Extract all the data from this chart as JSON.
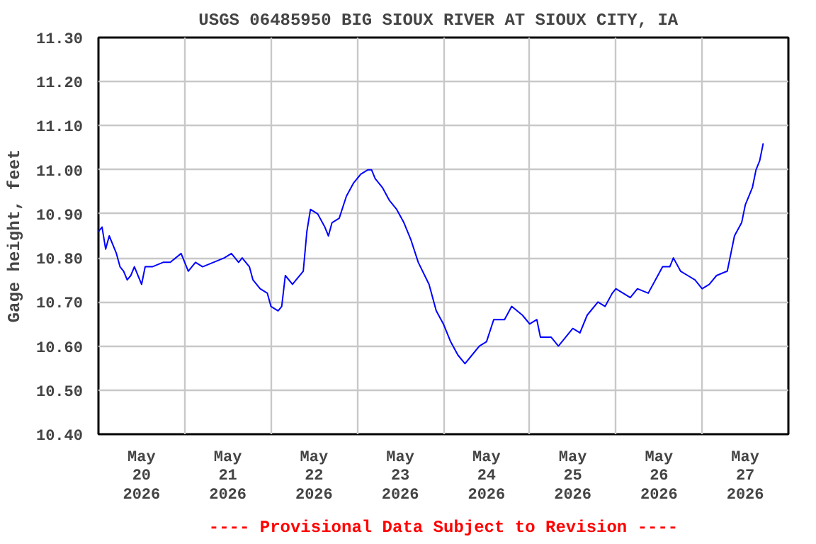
{
  "chart_data": {
    "type": "line",
    "title": "USGS 06485950 BIG SIOUX RIVER AT SIOUX CITY,  IA",
    "ylabel": "Gage height, feet",
    "annotations": [
      "---- Provisional Data Subject to Revision ----"
    ],
    "x": [
      "2026-05-20T00:00",
      "2026-05-20T01:00",
      "2026-05-20T02:00",
      "2026-05-20T03:00",
      "2026-05-20T04:00",
      "2026-05-20T05:00",
      "2026-05-20T06:00",
      "2026-05-20T07:00",
      "2026-05-20T08:00",
      "2026-05-20T09:00",
      "2026-05-20T10:00",
      "2026-05-20T12:00",
      "2026-05-20T13:00",
      "2026-05-20T15:00",
      "2026-05-20T18:00",
      "2026-05-20T20:00",
      "2026-05-20T23:00",
      "2026-05-21T01:00",
      "2026-05-21T03:00",
      "2026-05-21T05:00",
      "2026-05-21T08:00",
      "2026-05-21T11:00",
      "2026-05-21T13:00",
      "2026-05-21T15:00",
      "2026-05-21T16:00",
      "2026-05-21T18:00",
      "2026-05-21T19:00",
      "2026-05-21T21:00",
      "2026-05-21T23:00",
      "2026-05-22T00:00",
      "2026-05-22T02:00",
      "2026-05-22T03:00",
      "2026-05-22T04:00",
      "2026-05-22T06:00",
      "2026-05-22T07:00",
      "2026-05-22T09:00",
      "2026-05-22T10:00",
      "2026-05-22T11:00",
      "2026-05-22T13:00",
      "2026-05-22T15:00",
      "2026-05-22T16:00",
      "2026-05-22T17:00",
      "2026-05-22T19:00",
      "2026-05-22T21:00",
      "2026-05-22T23:00",
      "2026-05-23T01:00",
      "2026-05-23T03:00",
      "2026-05-23T04:00",
      "2026-05-23T05:00",
      "2026-05-23T07:00",
      "2026-05-23T09:00",
      "2026-05-23T11:00",
      "2026-05-23T13:00",
      "2026-05-23T15:00",
      "2026-05-23T17:00",
      "2026-05-23T20:00",
      "2026-05-23T22:00",
      "2026-05-24T00:00",
      "2026-05-24T02:00",
      "2026-05-24T04:00",
      "2026-05-24T06:00",
      "2026-05-24T08:00",
      "2026-05-24T10:00",
      "2026-05-24T12:00",
      "2026-05-24T14:00",
      "2026-05-24T17:00",
      "2026-05-24T19:00",
      "2026-05-24T22:00",
      "2026-05-25T00:00",
      "2026-05-25T02:00",
      "2026-05-25T03:00",
      "2026-05-25T06:00",
      "2026-05-25T08:00",
      "2026-05-25T10:00",
      "2026-05-25T12:00",
      "2026-05-25T14:00",
      "2026-05-25T16:00",
      "2026-05-25T19:00",
      "2026-05-25T21:00",
      "2026-05-25T23:00",
      "2026-05-26T00:00",
      "2026-05-26T02:00",
      "2026-05-26T04:00",
      "2026-05-26T06:00",
      "2026-05-26T09:00",
      "2026-05-26T11:00",
      "2026-05-26T13:00",
      "2026-05-26T15:00",
      "2026-05-26T16:00",
      "2026-05-26T18:00",
      "2026-05-26T20:00",
      "2026-05-26T22:00",
      "2026-05-27T00:00",
      "2026-05-27T02:00",
      "2026-05-27T04:00",
      "2026-05-27T07:00",
      "2026-05-27T08:00",
      "2026-05-27T09:00",
      "2026-05-27T11:00",
      "2026-05-27T12:00",
      "2026-05-27T14:00",
      "2026-05-27T15:00",
      "2026-05-27T16:00",
      "2026-05-27T17:00"
    ],
    "series": [
      {
        "color": "#0000ff",
        "values": [
          10.86,
          10.87,
          10.82,
          10.85,
          10.83,
          10.81,
          10.78,
          10.77,
          10.75,
          10.76,
          10.78,
          10.74,
          10.78,
          10.78,
          10.79,
          10.79,
          10.81,
          10.77,
          10.79,
          10.78,
          10.79,
          10.8,
          10.81,
          10.79,
          10.8,
          10.78,
          10.75,
          10.73,
          10.72,
          10.69,
          10.68,
          10.69,
          10.76,
          10.74,
          10.75,
          10.77,
          10.86,
          10.91,
          10.9,
          10.87,
          10.85,
          10.88,
          10.89,
          10.94,
          10.97,
          10.99,
          11.0,
          11.0,
          10.98,
          10.96,
          10.93,
          10.91,
          10.88,
          10.84,
          10.79,
          10.74,
          10.68,
          10.65,
          10.61,
          10.58,
          10.56,
          10.58,
          10.6,
          10.61,
          10.66,
          10.66,
          10.69,
          10.67,
          10.65,
          10.66,
          10.62,
          10.62,
          10.6,
          10.62,
          10.64,
          10.63,
          10.67,
          10.7,
          10.69,
          10.72,
          10.73,
          10.72,
          10.71,
          10.73,
          10.72,
          10.75,
          10.78,
          10.78,
          10.8,
          10.77,
          10.76,
          10.75,
          10.73,
          10.74,
          10.76,
          10.77,
          10.81,
          10.85,
          10.88,
          10.92,
          10.96,
          11.0,
          11.02,
          11.06
        ]
      }
    ],
    "xlim": [
      "2026-05-20T00:00",
      "2026-05-28T00:00"
    ],
    "xticks": [
      {
        "value": "2026-05-20T12:00",
        "label": "May\n20\n2026"
      },
      {
        "value": "2026-05-21T00:00",
        "label": null
      },
      {
        "value": "2026-05-21T12:00",
        "label": "May\n21\n2026"
      },
      {
        "value": "2026-05-22T00:00",
        "label": null
      },
      {
        "value": "2026-05-22T12:00",
        "label": "May\n22\n2026"
      },
      {
        "value": "2026-05-23T00:00",
        "label": null
      },
      {
        "value": "2026-05-23T12:00",
        "label": "May\n23\n2026"
      },
      {
        "value": "2026-05-24T00:00",
        "label": null
      },
      {
        "value": "2026-05-24T12:00",
        "label": "May\n24\n2026"
      },
      {
        "value": "2026-05-25T00:00",
        "label": null
      },
      {
        "value": "2026-05-25T12:00",
        "label": "May\n25\n2026"
      },
      {
        "value": "2026-05-26T00:00",
        "label": null
      },
      {
        "value": "2026-05-26T12:00",
        "label": "May\n26\n2026"
      },
      {
        "value": "2026-05-27T00:00",
        "label": null
      },
      {
        "value": "2026-05-27T12:00",
        "label": "May\n27\n2026"
      }
    ],
    "ylim": [
      10.4,
      11.3
    ],
    "yticks": [
      {
        "value": 10.4,
        "label": "10.40"
      },
      {
        "value": 10.5,
        "label": "10.50"
      },
      {
        "value": 10.6,
        "label": "10.60"
      },
      {
        "value": 10.7,
        "label": "10.70"
      },
      {
        "value": 10.8,
        "label": "10.80"
      },
      {
        "value": 10.9,
        "label": "10.90"
      },
      {
        "value": 11.0,
        "label": "11.00"
      },
      {
        "value": 11.1,
        "label": "11.10"
      },
      {
        "value": 11.2,
        "label": "11.20"
      },
      {
        "value": 11.3,
        "label": "11.30"
      }
    ],
    "grid": true
  }
}
